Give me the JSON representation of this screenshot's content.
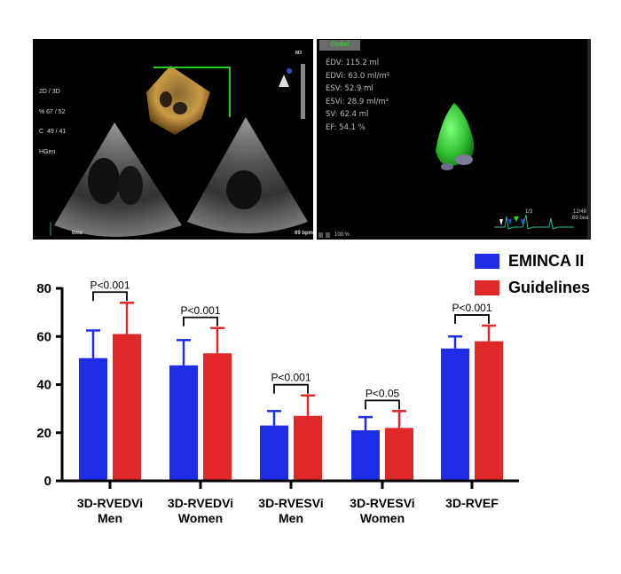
{
  "echo_panel": {
    "info_lines": [
      "2D / 3D",
      "% 67 / 52",
      "C  49 / 41",
      "HGen"
    ],
    "probe_label": "M3",
    "time_label": "0ms",
    "heart_rate": "69 bpm"
  },
  "model_panel": {
    "tab_label": "Global",
    "metrics": [
      "EDV: 115.2 ml",
      "EDVi: 63.0 ml/m²",
      "ESV: 52.9 ml",
      "ESVi: 28.9 ml/m²",
      "SV: 62.4 ml",
      "EF: 54.1 %"
    ],
    "zoom_label": "100 %",
    "beat_label": "1/3",
    "frame_label": "12/48",
    "rate_label": "69 bea"
  },
  "legend": {
    "items": [
      {
        "label": "EMINCA II",
        "color": "#1f2de8"
      },
      {
        "label": "Guidelines",
        "color": "#e02828"
      }
    ]
  },
  "chart_data": {
    "type": "bar",
    "title": "",
    "xlabel": "",
    "ylabel": "",
    "ylim": [
      0,
      80
    ],
    "yticks": [
      0,
      20,
      40,
      60,
      80
    ],
    "grid": false,
    "legend_position": "top-right",
    "categories": [
      "3D-RVEDVi\nMen",
      "3D-RVEDVi\nWomen",
      "3D-RVESVi\nMen",
      "3D-RVESVi\nWomen",
      "3D-RVEF"
    ],
    "category_lines": [
      [
        "3D-RVEDVi",
        "Men"
      ],
      [
        "3D-RVEDVi",
        "Women"
      ],
      [
        "3D-RVESVi",
        "Men"
      ],
      [
        "3D-RVESVi",
        "Women"
      ],
      [
        "3D-RVEF",
        ""
      ]
    ],
    "series": [
      {
        "name": "EMINCA II",
        "color": "#1f2de8",
        "values": [
          51,
          48,
          23,
          21,
          55
        ],
        "error_upper": [
          62.5,
          58.5,
          29,
          26.5,
          60
        ]
      },
      {
        "name": "Guidelines",
        "color": "#e02828",
        "values": [
          61,
          53,
          27,
          22,
          58
        ],
        "error_upper": [
          74,
          63.5,
          35.5,
          29,
          64.5
        ]
      }
    ],
    "annotations": [
      "P<0.001",
      "P<0.001",
      "P<0.001",
      "P<0.05",
      "P<0.001"
    ]
  }
}
